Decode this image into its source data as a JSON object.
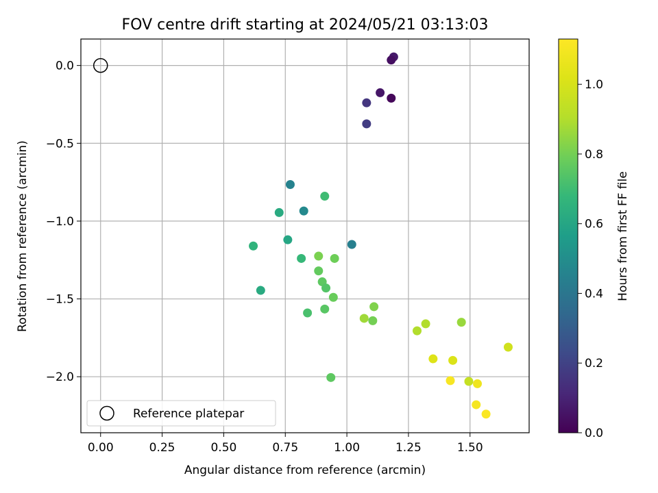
{
  "chart_data": {
    "type": "scatter",
    "title": "FOV centre drift starting at 2024/05/21 03:13:03",
    "xlabel": "Angular distance from reference (arcmin)",
    "ylabel": "Rotation from reference (arcmin)",
    "xlim": [
      -0.08,
      1.74
    ],
    "ylim": [
      -2.36,
      0.17
    ],
    "xticks": [
      0.0,
      0.25,
      0.5,
      0.75,
      1.0,
      1.25,
      1.5
    ],
    "xtick_labels": [
      "0.00",
      "0.25",
      "0.50",
      "0.75",
      "1.00",
      "1.25",
      "1.50"
    ],
    "yticks": [
      0.0,
      -0.5,
      -1.0,
      -1.5,
      -2.0
    ],
    "ytick_labels": [
      "0.0",
      "−0.5",
      "−1.0",
      "−1.5",
      "−2.0"
    ],
    "grid": true,
    "colormap": "viridis",
    "colorbar": {
      "label": "Hours from first FF file",
      "range": [
        0.0,
        1.13
      ],
      "ticks": [
        0.0,
        0.2,
        0.4,
        0.6,
        0.8,
        1.0
      ],
      "tick_labels": [
        "0.0",
        "0.2",
        "0.4",
        "0.6",
        "0.8",
        "1.0"
      ]
    },
    "legend": {
      "placement": "lower-left",
      "entries": [
        "Reference platepar"
      ]
    },
    "reference_point": {
      "x": 0.0,
      "y": 0.0
    },
    "points": [
      {
        "x": 1.19,
        "y": 0.055,
        "hours": 0.07
      },
      {
        "x": 1.18,
        "y": 0.035,
        "hours": 0.04
      },
      {
        "x": 1.135,
        "y": -0.175,
        "hours": 0.06
      },
      {
        "x": 1.18,
        "y": -0.21,
        "hours": 0.02
      },
      {
        "x": 1.08,
        "y": -0.24,
        "hours": 0.16
      },
      {
        "x": 1.08,
        "y": -0.375,
        "hours": 0.18
      },
      {
        "x": 0.77,
        "y": -0.765,
        "hours": 0.45
      },
      {
        "x": 0.91,
        "y": -0.84,
        "hours": 0.7
      },
      {
        "x": 0.725,
        "y": -0.945,
        "hours": 0.62
      },
      {
        "x": 0.825,
        "y": -0.935,
        "hours": 0.48
      },
      {
        "x": 0.76,
        "y": -1.12,
        "hours": 0.6
      },
      {
        "x": 1.02,
        "y": -1.15,
        "hours": 0.44
      },
      {
        "x": 0.62,
        "y": -1.16,
        "hours": 0.66
      },
      {
        "x": 0.815,
        "y": -1.24,
        "hours": 0.68
      },
      {
        "x": 0.885,
        "y": -1.225,
        "hours": 0.81
      },
      {
        "x": 0.95,
        "y": -1.24,
        "hours": 0.79
      },
      {
        "x": 0.885,
        "y": -1.32,
        "hours": 0.77
      },
      {
        "x": 0.9,
        "y": -1.39,
        "hours": 0.76
      },
      {
        "x": 0.915,
        "y": -1.43,
        "hours": 0.74
      },
      {
        "x": 0.65,
        "y": -1.445,
        "hours": 0.62
      },
      {
        "x": 0.945,
        "y": -1.49,
        "hours": 0.78
      },
      {
        "x": 1.11,
        "y": -1.55,
        "hours": 0.82
      },
      {
        "x": 0.91,
        "y": -1.565,
        "hours": 0.75
      },
      {
        "x": 0.84,
        "y": -1.59,
        "hours": 0.72
      },
      {
        "x": 1.07,
        "y": -1.625,
        "hours": 0.87
      },
      {
        "x": 1.105,
        "y": -1.64,
        "hours": 0.8
      },
      {
        "x": 1.465,
        "y": -1.65,
        "hours": 0.86
      },
      {
        "x": 1.32,
        "y": -1.66,
        "hours": 0.9
      },
      {
        "x": 1.285,
        "y": -1.705,
        "hours": 0.9
      },
      {
        "x": 1.655,
        "y": -1.81,
        "hours": 0.98
      },
      {
        "x": 1.35,
        "y": -1.885,
        "hours": 1.02
      },
      {
        "x": 1.43,
        "y": -1.895,
        "hours": 1.01
      },
      {
        "x": 0.935,
        "y": -2.005,
        "hours": 0.76
      },
      {
        "x": 1.42,
        "y": -2.025,
        "hours": 1.11
      },
      {
        "x": 1.495,
        "y": -2.03,
        "hours": 0.95
      },
      {
        "x": 1.53,
        "y": -2.045,
        "hours": 1.08
      },
      {
        "x": 1.525,
        "y": -2.18,
        "hours": 1.1
      },
      {
        "x": 1.565,
        "y": -2.24,
        "hours": 1.12
      }
    ]
  }
}
